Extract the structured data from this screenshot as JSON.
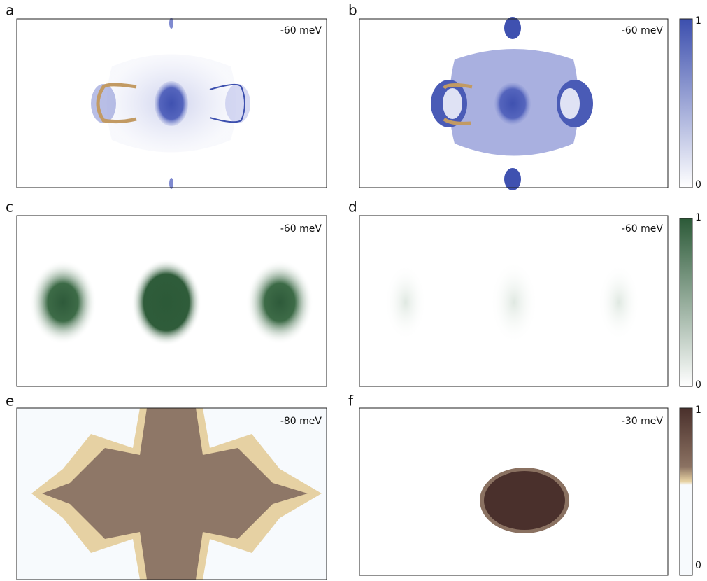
{
  "panels": [
    {
      "label": "a",
      "energy": "-60 meV"
    },
    {
      "label": "b",
      "energy": "-60 meV"
    },
    {
      "label": "c",
      "energy": "-60 meV"
    },
    {
      "label": "d",
      "energy": "-60 meV"
    },
    {
      "label": "e",
      "energy": "-80 meV"
    },
    {
      "label": "f",
      "energy": "-30 meV"
    }
  ],
  "colorbars": [
    {
      "max": 1,
      "min": 0
    },
    {
      "max": 1,
      "min": 0
    },
    {
      "max": 1,
      "min": 0
    }
  ]
}
